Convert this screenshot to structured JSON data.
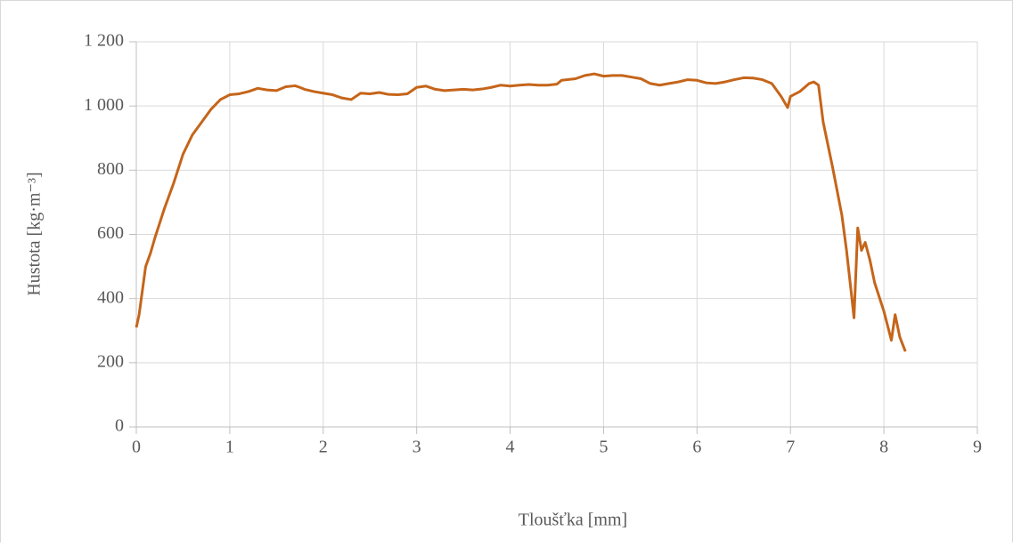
{
  "chart_data": {
    "type": "line",
    "xlabel": "Tloušťka [mm]",
    "ylabel": "Hustota [kg·m⁻³]",
    "x": [
      0,
      0.03,
      0.1,
      0.15,
      0.2,
      0.3,
      0.4,
      0.5,
      0.6,
      0.7,
      0.8,
      0.9,
      1.0,
      1.1,
      1.2,
      1.3,
      1.4,
      1.5,
      1.6,
      1.7,
      1.75,
      1.8,
      1.9,
      2.0,
      2.1,
      2.2,
      2.3,
      2.4,
      2.5,
      2.6,
      2.7,
      2.8,
      2.9,
      3.0,
      3.1,
      3.2,
      3.3,
      3.4,
      3.5,
      3.6,
      3.7,
      3.8,
      3.9,
      4.0,
      4.1,
      4.2,
      4.3,
      4.4,
      4.5,
      4.55,
      4.7,
      4.8,
      4.9,
      5.0,
      5.1,
      5.2,
      5.3,
      5.4,
      5.5,
      5.6,
      5.7,
      5.8,
      5.9,
      6.0,
      6.1,
      6.2,
      6.3,
      6.4,
      6.5,
      6.6,
      6.7,
      6.8,
      6.9,
      6.97,
      7.0,
      7.1,
      7.2,
      7.25,
      7.3,
      7.35,
      7.45,
      7.55,
      7.6,
      7.65,
      7.68,
      7.72,
      7.76,
      7.8,
      7.85,
      7.9,
      8.0,
      8.08,
      8.12,
      8.17,
      8.23
    ],
    "series": [
      {
        "name": "Hustota",
        "color": "#c5651a",
        "values": [
          310,
          350,
          500,
          540,
          590,
          680,
          760,
          850,
          910,
          950,
          990,
          1020,
          1035,
          1038,
          1045,
          1055,
          1050,
          1048,
          1060,
          1063,
          1058,
          1052,
          1045,
          1040,
          1035,
          1025,
          1020,
          1040,
          1038,
          1042,
          1036,
          1035,
          1038,
          1058,
          1062,
          1052,
          1048,
          1050,
          1052,
          1050,
          1053,
          1058,
          1065,
          1062,
          1065,
          1067,
          1065,
          1065,
          1068,
          1080,
          1085,
          1095,
          1100,
          1093,
          1095,
          1095,
          1090,
          1085,
          1070,
          1065,
          1070,
          1075,
          1082,
          1080,
          1072,
          1070,
          1075,
          1082,
          1088,
          1087,
          1082,
          1070,
          1030,
          995,
          1030,
          1045,
          1070,
          1075,
          1065,
          950,
          810,
          660,
          550,
          420,
          340,
          620,
          550,
          575,
          520,
          450,
          360,
          270,
          350,
          280,
          235
        ]
      }
    ],
    "xlim": [
      0,
      9
    ],
    "xticks": [
      0,
      1,
      2,
      3,
      4,
      5,
      6,
      7,
      8,
      9
    ],
    "ylim": [
      0,
      1200
    ],
    "yticks": [
      0,
      200,
      400,
      600,
      800,
      {
        "value": 1000,
        "label": "1 000"
      },
      {
        "value": 1200,
        "label": "1 200"
      }
    ],
    "grid": true
  }
}
